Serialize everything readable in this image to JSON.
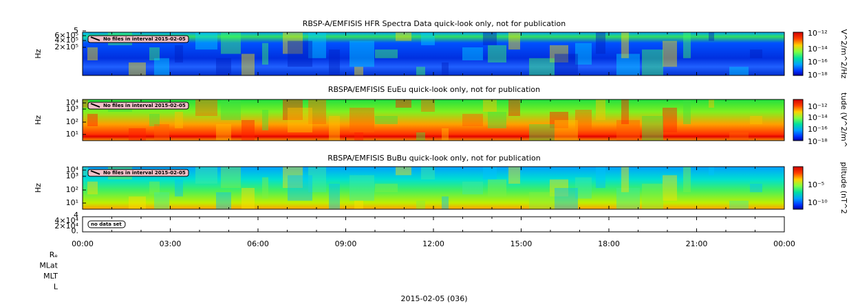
{
  "panels": [
    {
      "title": "RBSP-A/EMFISIS  HFR Spectra Data quick-look only, not for publication",
      "y_label": "Hz",
      "y_ticks": [
        "5",
        "6×10⁵",
        "4×10⁵",
        "2×10⁵"
      ],
      "colorbar_label": "V^2/m^2/Hz",
      "colorbar_ticks": [
        "10⁻¹²",
        "10⁻¹⁴",
        "10⁻¹⁶",
        "10⁻¹⁸"
      ],
      "notice": "No files in interval 2015-02-05"
    },
    {
      "title": "RBSPA/EMFISIS  EuEu quick-look only, not for publication",
      "y_label": "Hz",
      "y_ticks": [
        "10⁴",
        "10³",
        "10²",
        "10¹"
      ],
      "colorbar_label": "tude (V^2/m^",
      "colorbar_ticks": [
        "10⁻¹²",
        "10⁻¹⁴",
        "10⁻¹⁶",
        "10⁻¹⁸"
      ],
      "notice": "No files in interval 2015-02-05"
    },
    {
      "title": "RBSPA/EMFISIS  BuBu quick-look only, not for publication",
      "y_label": "Hz",
      "y_ticks": [
        "10⁴",
        "10³",
        "10²",
        "10¹"
      ],
      "colorbar_label": "plitude (nT^2",
      "colorbar_ticks": [
        "10⁻⁵",
        "10⁻¹⁰"
      ],
      "notice": "No files in interval 2015-02-05"
    }
  ],
  "bottom_panel": {
    "y_ticks": [
      "4",
      "4×10⁴",
      "2×10⁴",
      "0."
    ],
    "notice": "no data set"
  },
  "x_ticks": [
    "00:00",
    "03:00",
    "06:00",
    "09:00",
    "12:00",
    "15:00",
    "18:00",
    "21:00",
    "00:00"
  ],
  "ephemeris_labels": [
    "Rₑ",
    "MLat",
    "MLT",
    "L"
  ],
  "date_label": "2015-02-05 (036)"
}
